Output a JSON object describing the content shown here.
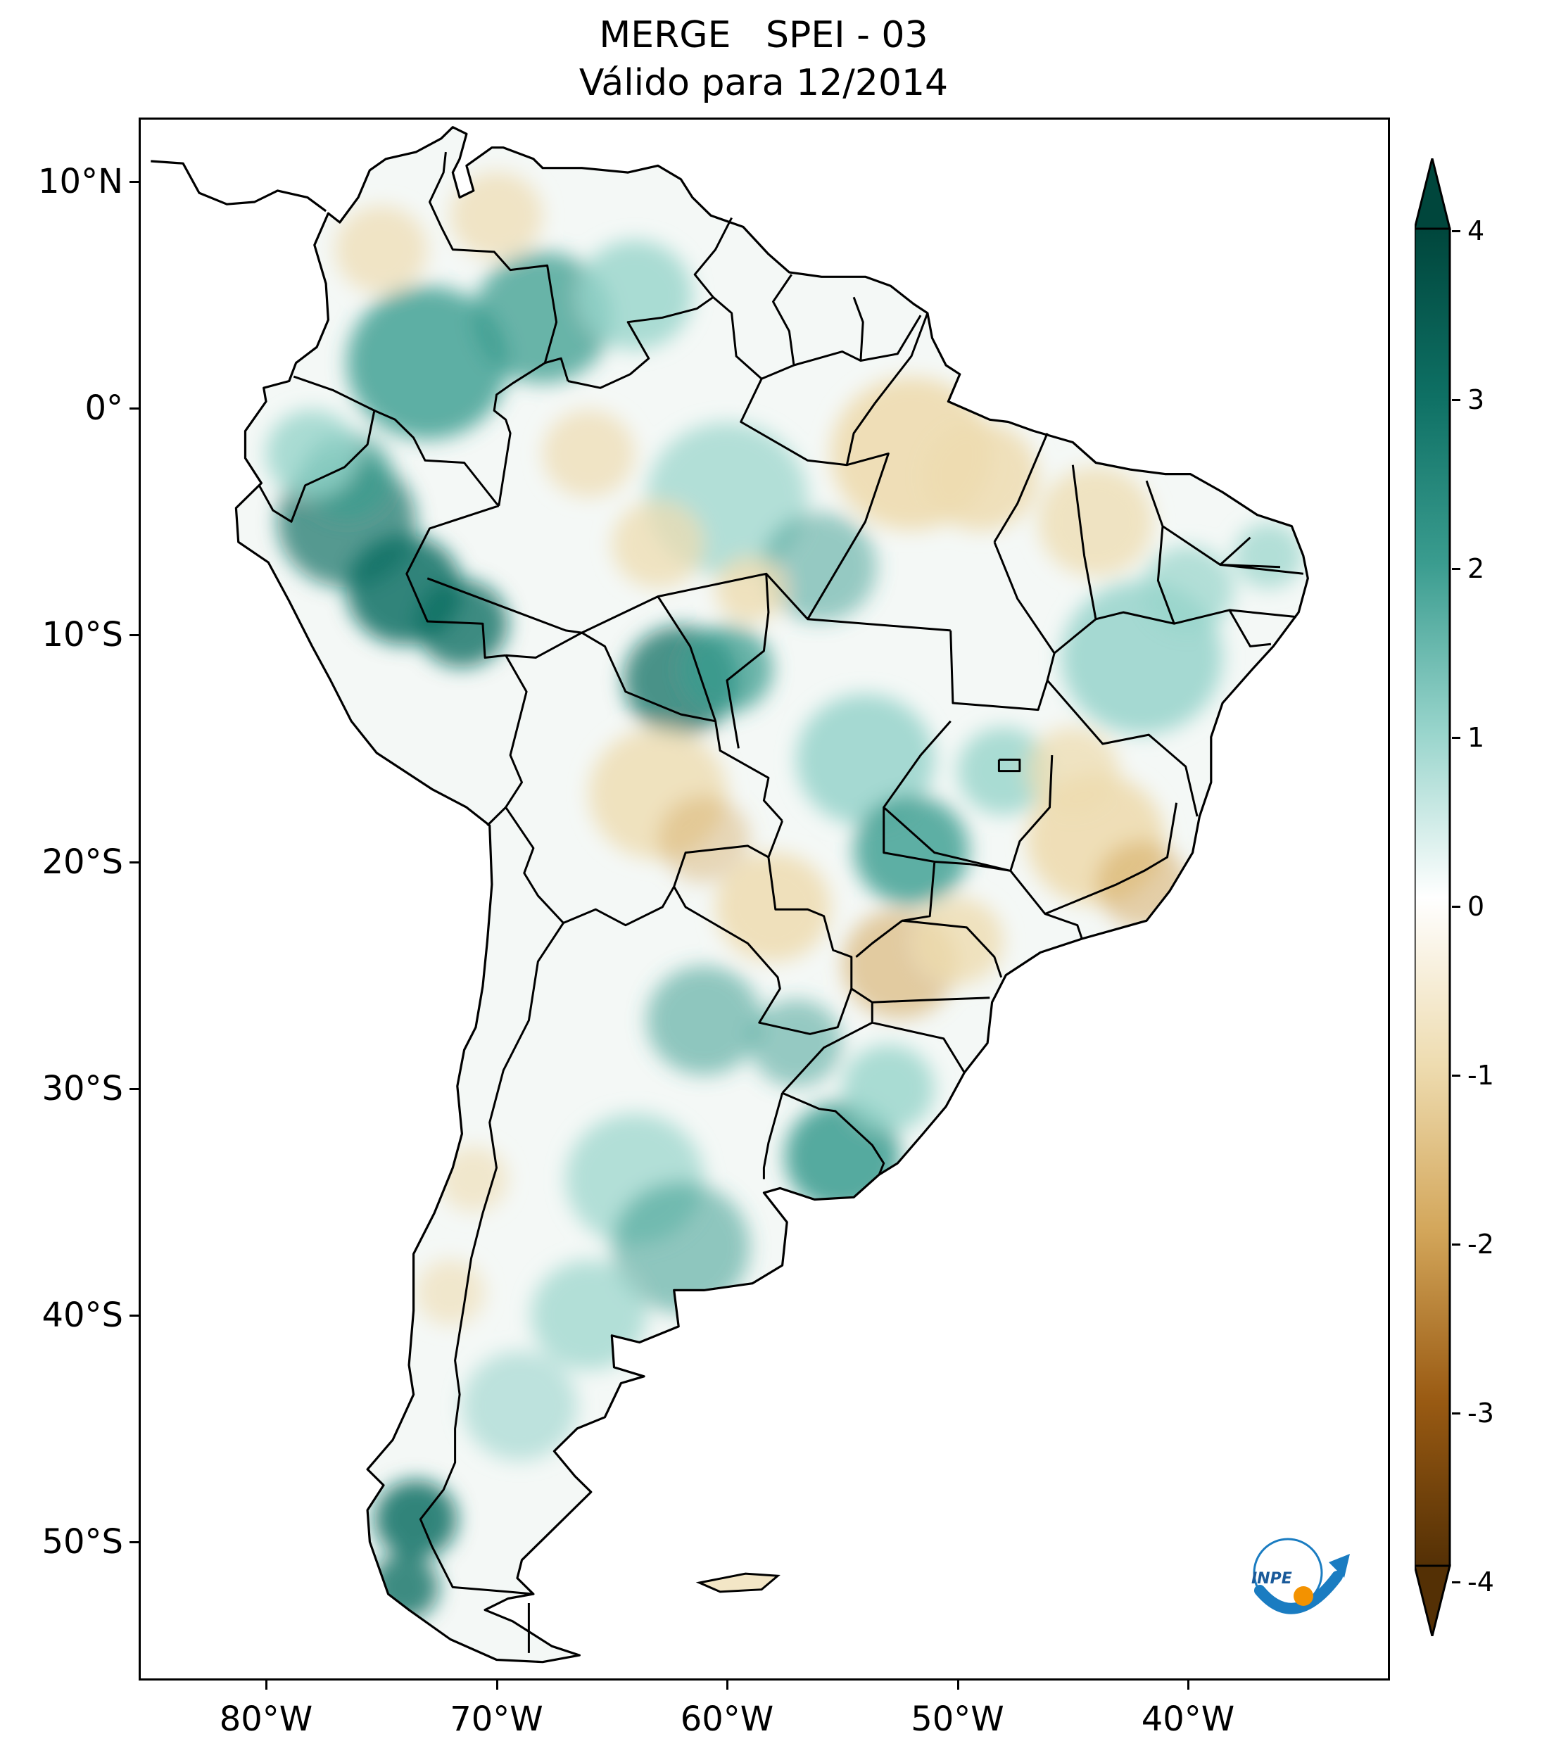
{
  "title": {
    "line1": "MERGE   SPEI - 03",
    "line2": "Válido para 12/2014"
  },
  "map": {
    "region": "South America",
    "lon_range": [
      -85,
      -30
    ],
    "lat_range": [
      -56,
      13
    ],
    "y_ticks": [
      {
        "label": "10°N",
        "lat": 10
      },
      {
        "label": "0°",
        "lat": 0
      },
      {
        "label": "10°S",
        "lat": -10
      },
      {
        "label": "20°S",
        "lat": -20
      },
      {
        "label": "30°S",
        "lat": -30
      },
      {
        "label": "40°S",
        "lat": -40
      },
      {
        "label": "50°S",
        "lat": -50
      }
    ],
    "x_ticks": [
      {
        "label": "80°W",
        "lon": -80
      },
      {
        "label": "70°W",
        "lon": -70
      },
      {
        "label": "60°W",
        "lon": -60
      },
      {
        "label": "50°W",
        "lon": -50
      },
      {
        "label": "40°W",
        "lon": -40
      }
    ]
  },
  "colorbar": {
    "ticks": [
      "4",
      "3",
      "2",
      "1",
      "0",
      "-1",
      "-2",
      "-3",
      "-4"
    ],
    "range": [
      -4,
      4
    ],
    "extend": "both",
    "colors": {
      "wet_extreme": "#00463c",
      "wet_strong": "#0e7064",
      "wet_moderate": "#3a9c8f",
      "wet_light": "#97d4cb",
      "neutral": "#ffffff",
      "dry_light": "#eedcb0",
      "dry_moderate": "#d3a65a",
      "dry_strong": "#9a5b13",
      "dry_extreme": "#543005"
    }
  },
  "logo": {
    "text": "INPE",
    "arrow_color": "#1a7cc1",
    "dot_color": "#f39200"
  }
}
